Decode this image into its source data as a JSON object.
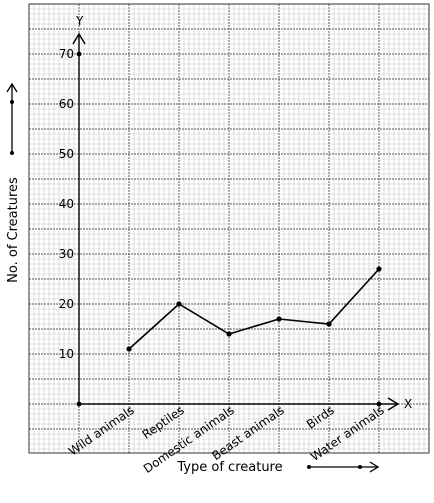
{
  "chart_data": {
    "type": "line",
    "xlabel": "Type of creature",
    "ylabel": "No. of Creatures",
    "x_axis_letter": "X",
    "y_axis_letter": "Y",
    "categories": [
      "Wild animals",
      "Reptiles",
      "Domestic animals",
      "Beast animals",
      "Birds",
      "Water animals"
    ],
    "values": [
      11,
      20,
      14,
      17,
      16,
      27
    ],
    "ylim": [
      0,
      75
    ],
    "yticks": [
      10,
      20,
      30,
      40,
      50,
      60,
      70
    ],
    "grid": true,
    "line_color": "#000000",
    "grid_minor_color": "#c8c8c8",
    "grid_major_color": "#555555"
  }
}
